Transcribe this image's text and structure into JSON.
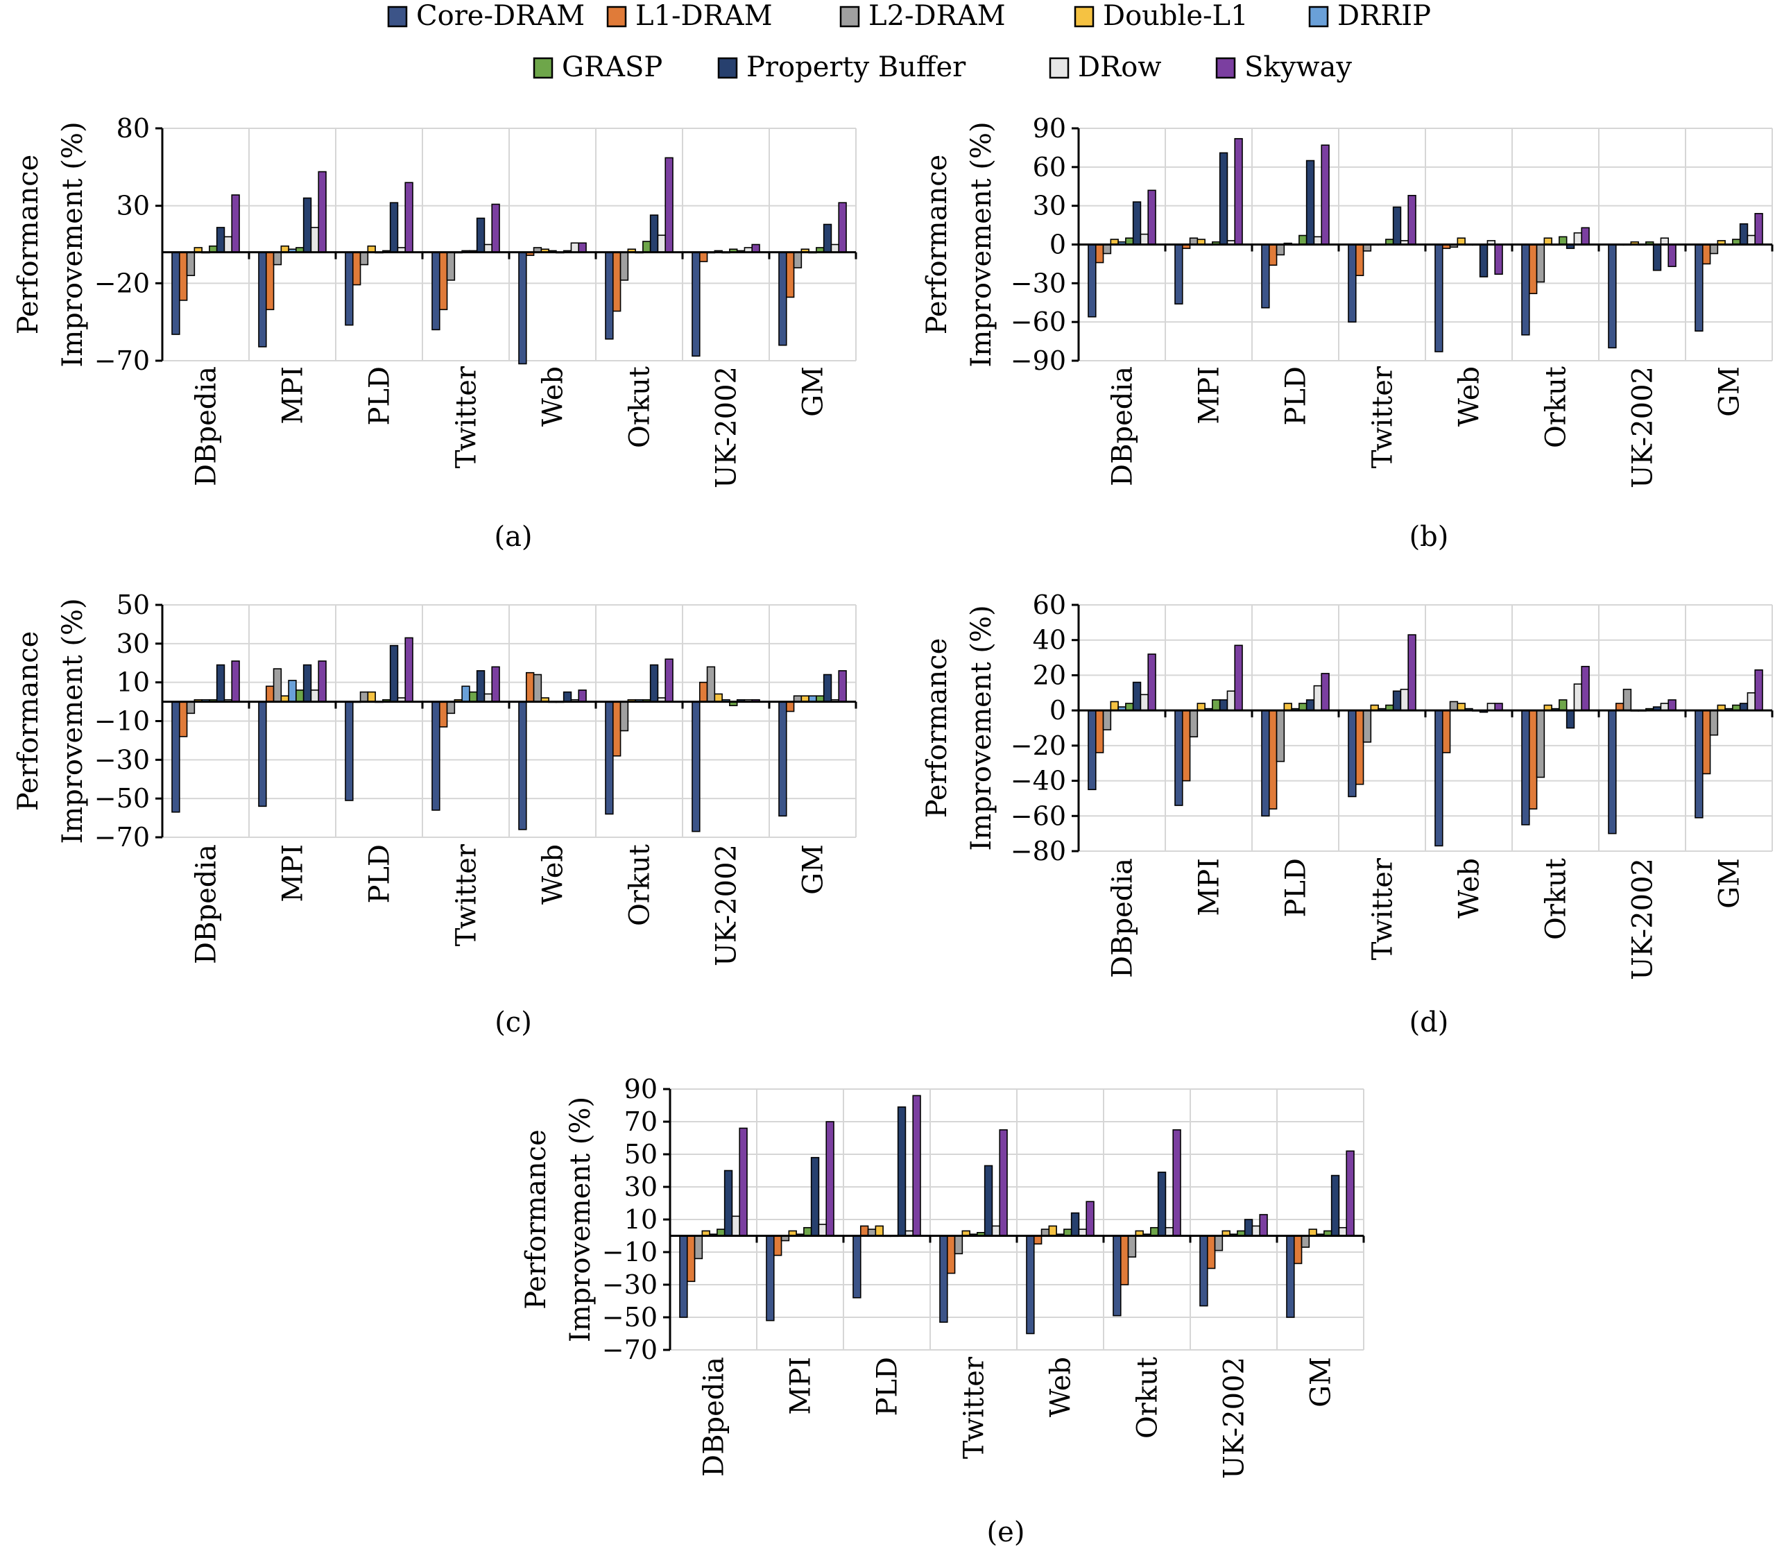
{
  "legend": [
    {
      "name": "Core-DRAM",
      "color": "#3c5488"
    },
    {
      "name": "L1-DRAM",
      "color": "#e07b39"
    },
    {
      "name": "L2-DRAM",
      "color": "#a0a0a0"
    },
    {
      "name": "Double-L1",
      "color": "#f5c242"
    },
    {
      "name": "DRRIP",
      "color": "#6aa0d8"
    },
    {
      "name": "GRASP",
      "color": "#6ea64a"
    },
    {
      "name": "Property Buffer",
      "color": "#27406e"
    },
    {
      "name": "DRow",
      "color": "#e6e6e6"
    },
    {
      "name": "Skyway",
      "color": "#7b3fa0"
    }
  ],
  "chart_data": [
    {
      "type": "bar",
      "caption": "(a)",
      "ylabel_line1": "Performance",
      "ylabel_line2": "Improvement (%)",
      "ylim": [
        -70,
        80
      ],
      "yticks": [
        "80",
        "30",
        "−20",
        "−70"
      ],
      "ytick_values": [
        80,
        30,
        -20,
        -70
      ],
      "categories": [
        "DBpedia",
        "MPI",
        "PLD",
        "Twitter",
        "Web",
        "Orkut",
        "UK-2002",
        "GM"
      ],
      "series": [
        {
          "name": "Core-DRAM",
          "values": [
            -53,
            -61,
            -47,
            -50,
            -72,
            -56,
            -67,
            -60
          ]
        },
        {
          "name": "L1-DRAM",
          "values": [
            -31,
            -37,
            -21,
            -37,
            -2,
            -38,
            -6,
            -29
          ]
        },
        {
          "name": "L2-DRAM",
          "values": [
            -15,
            -8,
            -8,
            -18,
            3,
            -18,
            0,
            -10
          ]
        },
        {
          "name": "Double-L1",
          "values": [
            3,
            4,
            4,
            0,
            2,
            2,
            1,
            2
          ]
        },
        {
          "name": "DRRIP",
          "values": [
            0,
            2,
            0,
            1,
            1,
            0,
            0,
            0
          ]
        },
        {
          "name": "GRASP",
          "values": [
            4,
            3,
            1,
            1,
            0,
            7,
            2,
            3
          ]
        },
        {
          "name": "Property Buffer",
          "values": [
            16,
            35,
            32,
            22,
            1,
            24,
            1,
            18
          ]
        },
        {
          "name": "DRow",
          "values": [
            10,
            16,
            3,
            5,
            6,
            11,
            3,
            5
          ]
        },
        {
          "name": "Skyway",
          "values": [
            37,
            52,
            45,
            31,
            6,
            61,
            5,
            32
          ]
        }
      ]
    },
    {
      "type": "bar",
      "caption": "(b)",
      "ylabel_line1": "Performance",
      "ylabel_line2": "Improvement (%)",
      "ylim": [
        -90,
        90
      ],
      "yticks": [
        "90",
        "60",
        "30",
        "0",
        "−30",
        "−60",
        "−90"
      ],
      "ytick_values": [
        90,
        60,
        30,
        0,
        -30,
        -60,
        -90
      ],
      "categories": [
        "DBpedia",
        "MPI",
        "PLD",
        "Twitter",
        "Web",
        "Orkut",
        "UK-2002",
        "GM"
      ],
      "series": [
        {
          "name": "Core-DRAM",
          "values": [
            -56,
            -46,
            -49,
            -60,
            -83,
            -70,
            -80,
            -67
          ]
        },
        {
          "name": "L1-DRAM",
          "values": [
            -14,
            -3,
            -16,
            -24,
            -3,
            -38,
            0,
            -15
          ]
        },
        {
          "name": "L2-DRAM",
          "values": [
            -7,
            5,
            -8,
            -5,
            -2,
            -29,
            0,
            -7
          ]
        },
        {
          "name": "Double-L1",
          "values": [
            4,
            4,
            1,
            0,
            5,
            5,
            2,
            3
          ]
        },
        {
          "name": "DRRIP",
          "values": [
            2,
            0,
            0,
            0,
            0,
            0,
            0,
            0
          ]
        },
        {
          "name": "GRASP",
          "values": [
            5,
            2,
            7,
            4,
            0,
            6,
            2,
            4
          ]
        },
        {
          "name": "Property Buffer",
          "values": [
            33,
            71,
            65,
            29,
            -25,
            -3,
            -20,
            16
          ]
        },
        {
          "name": "DRow",
          "values": [
            8,
            3,
            6,
            3,
            3,
            9,
            5,
            7
          ]
        },
        {
          "name": "Skyway",
          "values": [
            42,
            82,
            77,
            38,
            -23,
            13,
            -17,
            24
          ]
        }
      ]
    },
    {
      "type": "bar",
      "caption": "(c)",
      "ylabel_line1": "Performance",
      "ylabel_line2": "Improvement (%)",
      "ylim": [
        -70,
        50
      ],
      "yticks": [
        "50",
        "30",
        "10",
        "−10",
        "−30",
        "−50",
        "−70"
      ],
      "ytick_values": [
        50,
        30,
        10,
        -10,
        -30,
        -50,
        -70
      ],
      "categories": [
        "DBpedia",
        "MPI",
        "PLD",
        "Twitter",
        "Web",
        "Orkut",
        "UK-2002",
        "GM"
      ],
      "series": [
        {
          "name": "Core-DRAM",
          "values": [
            -57,
            -54,
            -51,
            -56,
            -66,
            -58,
            -67,
            -59
          ]
        },
        {
          "name": "L1-DRAM",
          "values": [
            -18,
            8,
            0,
            -13,
            15,
            -28,
            10,
            -5
          ]
        },
        {
          "name": "L2-DRAM",
          "values": [
            -6,
            17,
            5,
            -6,
            14,
            -15,
            18,
            3
          ]
        },
        {
          "name": "Double-L1",
          "values": [
            1,
            3,
            5,
            1,
            2,
            1,
            4,
            3
          ]
        },
        {
          "name": "DRRIP",
          "values": [
            1,
            11,
            0,
            8,
            0,
            1,
            1,
            3
          ]
        },
        {
          "name": "GRASP",
          "values": [
            1,
            6,
            1,
            5,
            0,
            1,
            -2,
            3
          ]
        },
        {
          "name": "Property Buffer",
          "values": [
            19,
            19,
            29,
            16,
            5,
            19,
            1,
            14
          ]
        },
        {
          "name": "DRow",
          "values": [
            1,
            6,
            2,
            4,
            1,
            2,
            1,
            1
          ]
        },
        {
          "name": "Skyway",
          "values": [
            21,
            21,
            33,
            18,
            6,
            22,
            1,
            16
          ]
        }
      ]
    },
    {
      "type": "bar",
      "caption": "(d)",
      "ylabel_line1": "Performance",
      "ylabel_line2": "Improvement (%)",
      "ylim": [
        -80,
        60
      ],
      "yticks": [
        "60",
        "40",
        "20",
        "0",
        "−20",
        "−40",
        "−60",
        "−80"
      ],
      "ytick_values": [
        60,
        40,
        20,
        0,
        -20,
        -40,
        -60,
        -80
      ],
      "categories": [
        "DBpedia",
        "MPI",
        "PLD",
        "Twitter",
        "Web",
        "Orkut",
        "UK-2002",
        "GM"
      ],
      "series": [
        {
          "name": "Core-DRAM",
          "values": [
            -45,
            -54,
            -60,
            -49,
            -77,
            -65,
            -70,
            -61
          ]
        },
        {
          "name": "L1-DRAM",
          "values": [
            -24,
            -40,
            -56,
            -42,
            -24,
            -56,
            4,
            -36
          ]
        },
        {
          "name": "L2-DRAM",
          "values": [
            -11,
            -15,
            -29,
            -18,
            5,
            -38,
            12,
            -14
          ]
        },
        {
          "name": "Double-L1",
          "values": [
            5,
            4,
            4,
            3,
            4,
            3,
            0,
            3
          ]
        },
        {
          "name": "DRRIP",
          "values": [
            2,
            1,
            1,
            1,
            1,
            1,
            0,
            1
          ]
        },
        {
          "name": "GRASP",
          "values": [
            4,
            6,
            4,
            3,
            0,
            6,
            1,
            3
          ]
        },
        {
          "name": "Property Buffer",
          "values": [
            16,
            6,
            6,
            11,
            -1,
            -10,
            2,
            4
          ]
        },
        {
          "name": "DRow",
          "values": [
            9,
            11,
            14,
            12,
            4,
            15,
            4,
            10
          ]
        },
        {
          "name": "Skyway",
          "values": [
            32,
            37,
            21,
            43,
            4,
            25,
            6,
            23
          ]
        }
      ]
    },
    {
      "type": "bar",
      "caption": "(e)",
      "ylabel_line1": "Performance",
      "ylabel_line2": "Improvement (%)",
      "ylim": [
        -70,
        90
      ],
      "yticks": [
        "90",
        "70",
        "50",
        "30",
        "10",
        "−10",
        "−30",
        "−50",
        "−70"
      ],
      "ytick_values": [
        90,
        70,
        50,
        30,
        10,
        -10,
        -30,
        -50,
        -70
      ],
      "categories": [
        "DBpedia",
        "MPI",
        "PLD",
        "Twitter",
        "Web",
        "Orkut",
        "UK-2002",
        "GM"
      ],
      "series": [
        {
          "name": "Core-DRAM",
          "values": [
            -50,
            -52,
            -38,
            -53,
            -60,
            -49,
            -43,
            -50
          ]
        },
        {
          "name": "L1-DRAM",
          "values": [
            -28,
            -12,
            6,
            -23,
            -5,
            -30,
            -20,
            -17
          ]
        },
        {
          "name": "L2-DRAM",
          "values": [
            -14,
            -3,
            4,
            -11,
            4,
            -13,
            -9,
            -7
          ]
        },
        {
          "name": "Double-L1",
          "values": [
            3,
            3,
            6,
            3,
            6,
            3,
            3,
            4
          ]
        },
        {
          "name": "DRRIP",
          "values": [
            1,
            1,
            0,
            1,
            1,
            1,
            1,
            1
          ]
        },
        {
          "name": "GRASP",
          "values": [
            4,
            5,
            0,
            2,
            4,
            5,
            3,
            3
          ]
        },
        {
          "name": "Property Buffer",
          "values": [
            40,
            48,
            79,
            43,
            14,
            39,
            10,
            37
          ]
        },
        {
          "name": "DRow",
          "values": [
            12,
            7,
            3,
            6,
            4,
            5,
            6,
            5
          ]
        },
        {
          "name": "Skyway",
          "values": [
            66,
            70,
            86,
            65,
            21,
            65,
            13,
            52
          ]
        }
      ]
    }
  ]
}
